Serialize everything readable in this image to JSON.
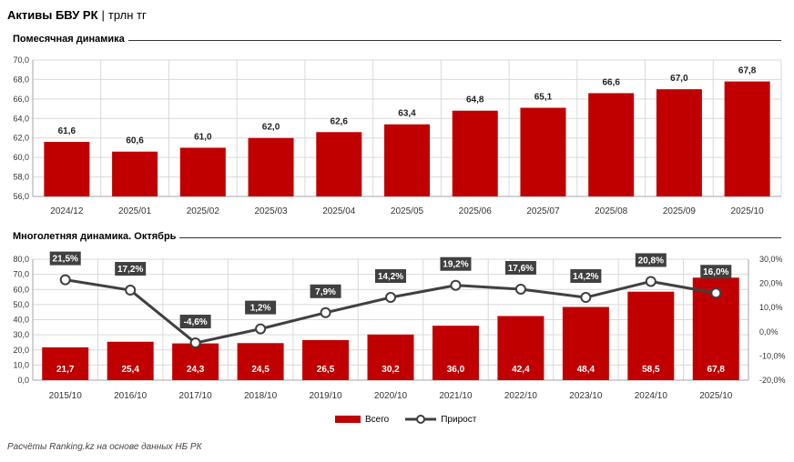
{
  "header": {
    "title": "Активы БВУ РК",
    "separator": "|",
    "unit": "трлн тг"
  },
  "colors": {
    "bar": "#c00000",
    "line": "#404040",
    "label_bg": "#404040",
    "grid": "#d9d9d9"
  },
  "chart_data": [
    {
      "type": "bar",
      "title": "Помесячная динамика",
      "categories": [
        "2024/12",
        "2025/01",
        "2025/02",
        "2025/03",
        "2025/04",
        "2025/05",
        "2025/06",
        "2025/07",
        "2025/08",
        "2025/09",
        "2025/10"
      ],
      "values": [
        61.6,
        60.6,
        61.0,
        62.0,
        62.6,
        63.4,
        64.8,
        65.1,
        66.6,
        67.0,
        67.8
      ],
      "value_labels": [
        "61,6",
        "60,6",
        "61,0",
        "62,0",
        "62,6",
        "63,4",
        "64,8",
        "65,1",
        "66,6",
        "67,0",
        "67,8"
      ],
      "ylim": [
        56,
        70
      ],
      "yticks": [
        "56,0",
        "58,0",
        "60,0",
        "62,0",
        "64,0",
        "66,0",
        "68,0",
        "70,0"
      ]
    },
    {
      "type": "bar+line",
      "title": "Многолетняя динамика. Октябрь",
      "categories": [
        "2015/10",
        "2016/10",
        "2017/10",
        "2018/10",
        "2019/10",
        "2020/10",
        "2021/10",
        "2022/10",
        "2023/10",
        "2024/10",
        "2025/10"
      ],
      "series": [
        {
          "name": "Всего",
          "type": "bar",
          "axis": "left",
          "values": [
            21.7,
            25.4,
            24.3,
            24.5,
            26.5,
            30.2,
            36.0,
            42.4,
            48.4,
            58.5,
            67.8
          ],
          "value_labels": [
            "21,7",
            "25,4",
            "24,3",
            "24,5",
            "26,5",
            "30,2",
            "36,0",
            "42,4",
            "48,4",
            "58,5",
            "67,8"
          ]
        },
        {
          "name": "Прирост",
          "type": "line",
          "axis": "right",
          "values": [
            21.5,
            17.2,
            -4.6,
            1.2,
            7.9,
            14.2,
            19.2,
            17.6,
            14.2,
            20.8,
            16.0
          ],
          "value_labels": [
            "21,5%",
            "17,2%",
            "-4,6%",
            "1,2%",
            "7,9%",
            "14,2%",
            "19,2%",
            "17,6%",
            "14,2%",
            "20,8%",
            "16,0%"
          ]
        }
      ],
      "ylim_left": [
        0,
        80
      ],
      "yticks_left": [
        "0,0",
        "10,0",
        "20,0",
        "30,0",
        "40,0",
        "50,0",
        "60,0",
        "70,0",
        "80,0"
      ],
      "ylim_right": [
        -20,
        30
      ],
      "yticks_right": [
        "-20,0%",
        "-10,0%",
        "0,0%",
        "10,0%",
        "20,0%",
        "30,0%"
      ],
      "legend": [
        "Всего",
        "Прирост"
      ]
    }
  ],
  "footer": "Расчёты Ranking.kz на основе данных НБ РК"
}
